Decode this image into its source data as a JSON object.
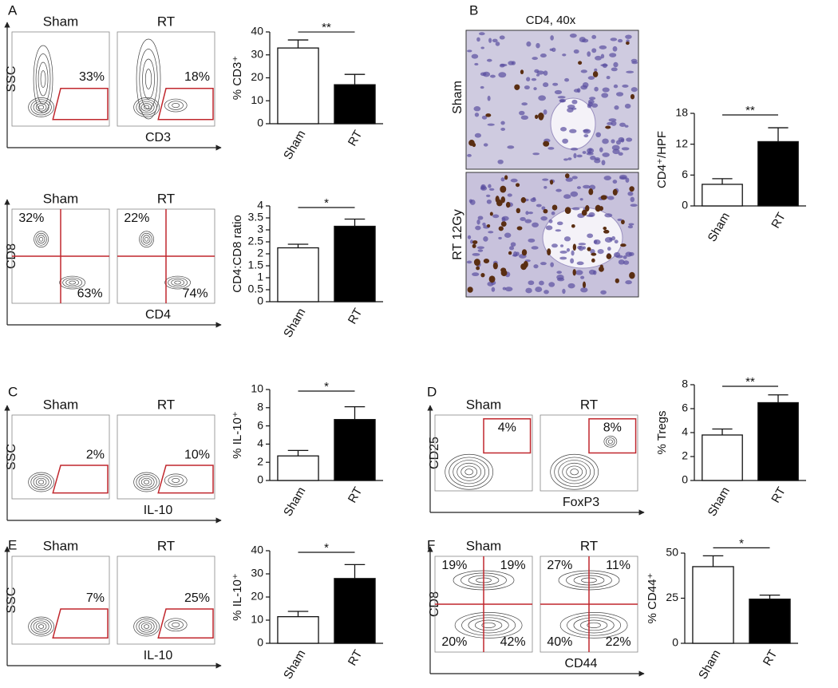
{
  "panels": [
    "A",
    "B",
    "C",
    "D",
    "E",
    "F"
  ],
  "histology": {
    "title": "CD4, 40x",
    "rows": [
      "Sham",
      "RT 12Gy"
    ]
  },
  "flow": [
    {
      "x_label": "CD3",
      "y_label": "SSC",
      "gate": "trapezoid",
      "plots": [
        {
          "title": "Sham",
          "labels": [
            "33%"
          ]
        },
        {
          "title": "RT",
          "labels": [
            "18%"
          ]
        }
      ]
    },
    {
      "x_label": "CD4",
      "y_label": "CD8",
      "gate": "quadrant",
      "plots": [
        {
          "title": "Sham",
          "labels": [
            "32%",
            "63%"
          ]
        },
        {
          "title": "RT",
          "labels": [
            "22%",
            "74%"
          ]
        }
      ]
    },
    {
      "x_label": "IL-10",
      "y_label": "SSC",
      "gate": "trapezoid",
      "plots": [
        {
          "title": "Sham",
          "labels": [
            "2%"
          ]
        },
        {
          "title": "RT",
          "labels": [
            "10%"
          ]
        }
      ]
    },
    {
      "x_label": "FoxP3",
      "y_label": "CD25",
      "gate": "box",
      "plots": [
        {
          "title": "Sham",
          "labels": [
            "4%"
          ]
        },
        {
          "title": "RT",
          "labels": [
            "8%"
          ]
        }
      ]
    },
    {
      "x_label": "IL-10",
      "y_label": "SSC",
      "gate": "trapezoid",
      "plots": [
        {
          "title": "Sham",
          "labels": [
            "7%"
          ]
        },
        {
          "title": "RT",
          "labels": [
            "25%"
          ]
        }
      ]
    },
    {
      "x_label": "CD44",
      "y_label": "CD8",
      "gate": "quadrant",
      "plots": [
        {
          "title": "Sham",
          "labels": [
            "19%",
            "19%",
            "20%",
            "42%"
          ]
        },
        {
          "title": "RT",
          "labels": [
            "27%",
            "11%",
            "40%",
            "22%"
          ]
        }
      ]
    }
  ],
  "chart_data": [
    {
      "type": "bar",
      "ylabel": "% CD3⁺",
      "categories": [
        "Sham",
        "RT"
      ],
      "values": [
        33,
        17
      ],
      "errors": [
        3.5,
        4.5
      ],
      "colors": [
        "#ffffff",
        "#000000"
      ],
      "ylim": [
        0,
        40
      ],
      "yticks": [
        0,
        10,
        20,
        30,
        40
      ],
      "significance": "**"
    },
    {
      "type": "bar",
      "ylabel": "CD4:CD8 ratio",
      "categories": [
        "Sham",
        "RT"
      ],
      "values": [
        2.25,
        3.15
      ],
      "errors": [
        0.15,
        0.3
      ],
      "colors": [
        "#ffffff",
        "#000000"
      ],
      "ylim": [
        0,
        4
      ],
      "yticks": [
        0,
        0.5,
        1,
        1.5,
        2,
        2.5,
        3,
        3.5,
        4
      ],
      "significance": "*"
    },
    {
      "type": "bar",
      "ylabel": "CD4⁺/HPF",
      "categories": [
        "Sham",
        "RT"
      ],
      "values": [
        4.2,
        12.5
      ],
      "errors": [
        1.1,
        2.7
      ],
      "colors": [
        "#ffffff",
        "#000000"
      ],
      "ylim": [
        0,
        18
      ],
      "yticks": [
        0,
        6,
        12,
        18
      ],
      "significance": "**"
    },
    {
      "type": "bar",
      "ylabel": "% IL-10⁺",
      "categories": [
        "Sham",
        "RT"
      ],
      "values": [
        2.7,
        6.7
      ],
      "errors": [
        0.6,
        1.4
      ],
      "colors": [
        "#ffffff",
        "#000000"
      ],
      "ylim": [
        0,
        10
      ],
      "yticks": [
        0,
        2,
        4,
        6,
        8,
        10
      ],
      "significance": "*"
    },
    {
      "type": "bar",
      "ylabel": "% Tregs",
      "categories": [
        "Sham",
        "RT"
      ],
      "values": [
        3.8,
        6.5
      ],
      "errors": [
        0.5,
        0.65
      ],
      "colors": [
        "#ffffff",
        "#000000"
      ],
      "ylim": [
        0,
        8
      ],
      "yticks": [
        0,
        2,
        4,
        6,
        8
      ],
      "significance": "**"
    },
    {
      "type": "bar",
      "ylabel": "% IL-10⁺",
      "categories": [
        "Sham",
        "RT"
      ],
      "values": [
        11.5,
        28
      ],
      "errors": [
        2.3,
        6
      ],
      "colors": [
        "#ffffff",
        "#000000"
      ],
      "ylim": [
        0,
        40
      ],
      "yticks": [
        0,
        10,
        20,
        30,
        40
      ],
      "significance": "*"
    },
    {
      "type": "bar",
      "ylabel": "% CD44⁺",
      "categories": [
        "Sham",
        "RT"
      ],
      "values": [
        42.5,
        24.5
      ],
      "errors": [
        6,
        2.2
      ],
      "colors": [
        "#ffffff",
        "#000000"
      ],
      "ylim": [
        0,
        50
      ],
      "yticks": [
        0,
        25,
        50
      ],
      "significance": "*"
    }
  ]
}
